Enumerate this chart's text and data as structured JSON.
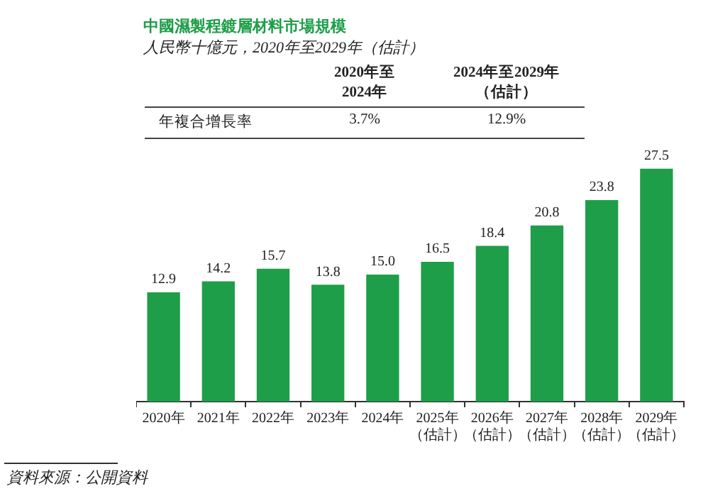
{
  "chart_data": {
    "type": "bar",
    "title": "中國濕製程鍍層材料市場規模",
    "subtitle": "人民幣十億元，2020年至2029年（估計）",
    "categories": [
      "2020年",
      "2021年",
      "2022年",
      "2023年",
      "2024年",
      "2025年（估計）",
      "2026年（估計）",
      "2027年（估計）",
      "2028年（估計）",
      "2029年（估計）"
    ],
    "values": [
      12.9,
      14.2,
      15.7,
      13.8,
      15.0,
      16.5,
      18.4,
      20.8,
      23.8,
      27.5
    ],
    "value_labels": [
      "12.9",
      "14.2",
      "15.7",
      "13.8",
      "15.0",
      "16.5",
      "18.4",
      "20.8",
      "23.8",
      "27.5"
    ],
    "color": "#1e9e48",
    "tick_labels": "x",
    "grid": false,
    "annotations": [
      "2020年至2024年",
      "2024年至2029年（估計）",
      "年複合增長率",
      "3.7%",
      "12.9%",
      "資料來源：公開資料"
    ]
  }
}
